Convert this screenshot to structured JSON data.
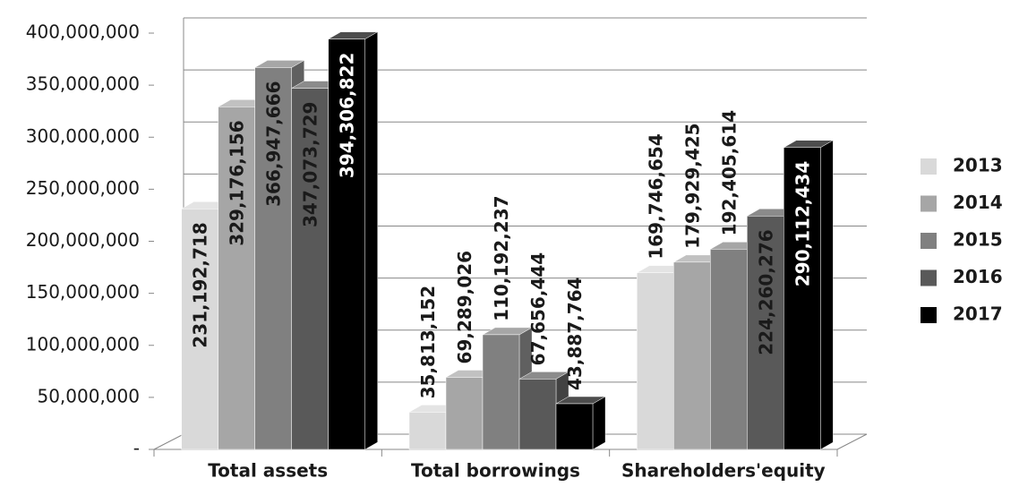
{
  "chart_data": {
    "type": "bar3d",
    "categories": [
      "Total assets",
      "Total borrowings",
      "Shareholders'equity"
    ],
    "series": [
      {
        "name": "2013",
        "color": "#d9d9d9",
        "values": [
          231192718,
          35813152,
          169746654
        ],
        "value_labels": [
          "231,192,718",
          "35,813,152",
          "169,746,654"
        ]
      },
      {
        "name": "2014",
        "color": "#a6a6a6",
        "values": [
          329176156,
          69289026,
          179929425
        ],
        "value_labels": [
          "329,176,156",
          "69,289,026",
          "179,929,425"
        ]
      },
      {
        "name": "2015",
        "color": "#808080",
        "values": [
          366947666,
          110192237,
          192405614
        ],
        "value_labels": [
          "366,947,666",
          "110,192,237",
          "192,405,614"
        ]
      },
      {
        "name": "2016",
        "color": "#595959",
        "values": [
          347073729,
          67656444,
          224260276
        ],
        "value_labels": [
          "347,073,729",
          "67,656,444",
          "224,260,276"
        ]
      },
      {
        "name": "2017",
        "color": "#000000",
        "values": [
          394306822,
          43887764,
          290112434
        ],
        "value_labels": [
          "394,306,822",
          "43,887,764",
          "290,112,434"
        ]
      }
    ],
    "ylim": [
      0,
      400000000
    ],
    "yticks": [
      {
        "value": 0,
        "label": "-"
      },
      {
        "value": 50000000,
        "label": "50,000,000"
      },
      {
        "value": 100000000,
        "label": "100,000,000"
      },
      {
        "value": 150000000,
        "label": "150,000,000"
      },
      {
        "value": 200000000,
        "label": "200,000,000"
      },
      {
        "value": 250000000,
        "label": "250,000,000"
      },
      {
        "value": 300000000,
        "label": "300,000,000"
      },
      {
        "value": 350000000,
        "label": "350,000,000"
      },
      {
        "value": 400000000,
        "label": "400,000,000"
      }
    ],
    "grid": true,
    "legend": "right"
  }
}
